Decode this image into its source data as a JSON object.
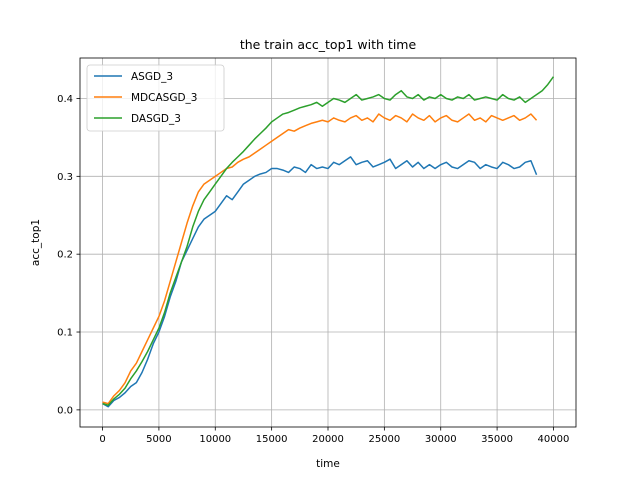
{
  "chart_data": {
    "type": "line",
    "title": "the train acc_top1 with time",
    "xlabel": "time",
    "ylabel": "acc_top1",
    "xlim": [
      -2000,
      42000
    ],
    "ylim": [
      -0.022,
      0.452
    ],
    "xticks": [
      0,
      5000,
      10000,
      15000,
      20000,
      25000,
      30000,
      35000,
      40000
    ],
    "xtick_labels": [
      "0",
      "5000",
      "10000",
      "15000",
      "20000",
      "25000",
      "30000",
      "35000",
      "40000"
    ],
    "yticks": [
      0.0,
      0.1,
      0.2,
      0.3,
      0.4
    ],
    "ytick_labels": [
      "0.0",
      "0.1",
      "0.2",
      "0.3",
      "0.4"
    ],
    "grid": true,
    "legend_position": "upper-left",
    "series": [
      {
        "name": "ASGD_3",
        "color": "#1f77b4",
        "x": [
          0,
          500,
          1000,
          1500,
          2000,
          2500,
          3000,
          3500,
          4000,
          4500,
          5000,
          5500,
          6000,
          6500,
          7000,
          7500,
          8000,
          8500,
          9000,
          9500,
          10000,
          10500,
          11000,
          11500,
          12000,
          12500,
          13000,
          13500,
          14000,
          14500,
          15000,
          15500,
          16000,
          16500,
          17000,
          17500,
          18000,
          18500,
          19000,
          19500,
          20000,
          20500,
          21000,
          21500,
          22000,
          22500,
          23000,
          23500,
          24000,
          24500,
          25000,
          25500,
          26000,
          26500,
          27000,
          27500,
          28000,
          28500,
          29000,
          29500,
          30000,
          30500,
          31000,
          31500,
          32000,
          32500,
          33000,
          33500,
          34000,
          34500,
          35000,
          35500,
          36000,
          36500,
          37000,
          37500,
          38000,
          38500
        ],
        "y": [
          0.008,
          0.004,
          0.012,
          0.016,
          0.022,
          0.03,
          0.035,
          0.048,
          0.065,
          0.085,
          0.1,
          0.12,
          0.145,
          0.165,
          0.19,
          0.205,
          0.22,
          0.235,
          0.245,
          0.25,
          0.255,
          0.265,
          0.275,
          0.27,
          0.28,
          0.29,
          0.295,
          0.3,
          0.303,
          0.305,
          0.31,
          0.31,
          0.308,
          0.305,
          0.312,
          0.31,
          0.305,
          0.315,
          0.31,
          0.312,
          0.31,
          0.318,
          0.315,
          0.32,
          0.325,
          0.315,
          0.318,
          0.32,
          0.312,
          0.315,
          0.318,
          0.322,
          0.31,
          0.315,
          0.32,
          0.312,
          0.318,
          0.31,
          0.315,
          0.31,
          0.315,
          0.318,
          0.312,
          0.31,
          0.315,
          0.32,
          0.318,
          0.31,
          0.315,
          0.312,
          0.31,
          0.318,
          0.315,
          0.31,
          0.312,
          0.318,
          0.32,
          0.302
        ]
      },
      {
        "name": "MDCASGD_3",
        "color": "#ff7f0e",
        "x": [
          0,
          500,
          1000,
          1500,
          2000,
          2500,
          3000,
          3500,
          4000,
          4500,
          5000,
          5500,
          6000,
          6500,
          7000,
          7500,
          8000,
          8500,
          9000,
          9500,
          10000,
          10500,
          11000,
          11500,
          12000,
          12500,
          13000,
          13500,
          14000,
          14500,
          15000,
          15500,
          16000,
          16500,
          17000,
          17500,
          18000,
          18500,
          19000,
          19500,
          20000,
          20500,
          21000,
          21500,
          22000,
          22500,
          23000,
          23500,
          24000,
          24500,
          25000,
          25500,
          26000,
          26500,
          27000,
          27500,
          28000,
          28500,
          29000,
          29500,
          30000,
          30500,
          31000,
          31500,
          32000,
          32500,
          33000,
          33500,
          34000,
          34500,
          35000,
          35500,
          36000,
          36500,
          37000,
          37500,
          38000,
          38500
        ],
        "y": [
          0.01,
          0.008,
          0.018,
          0.025,
          0.035,
          0.05,
          0.06,
          0.075,
          0.09,
          0.105,
          0.12,
          0.14,
          0.165,
          0.19,
          0.215,
          0.24,
          0.262,
          0.28,
          0.29,
          0.295,
          0.3,
          0.305,
          0.31,
          0.312,
          0.318,
          0.322,
          0.325,
          0.33,
          0.335,
          0.34,
          0.345,
          0.35,
          0.355,
          0.36,
          0.358,
          0.362,
          0.365,
          0.368,
          0.37,
          0.372,
          0.37,
          0.375,
          0.372,
          0.37,
          0.375,
          0.378,
          0.372,
          0.375,
          0.37,
          0.38,
          0.375,
          0.372,
          0.378,
          0.375,
          0.37,
          0.38,
          0.375,
          0.372,
          0.378,
          0.37,
          0.375,
          0.378,
          0.372,
          0.37,
          0.375,
          0.38,
          0.372,
          0.375,
          0.37,
          0.378,
          0.375,
          0.372,
          0.375,
          0.378,
          0.372,
          0.375,
          0.38,
          0.372
        ]
      },
      {
        "name": "DASGD_3",
        "color": "#2ca02c",
        "x": [
          0,
          500,
          1000,
          1500,
          2000,
          2500,
          3000,
          3500,
          4000,
          4500,
          5000,
          5500,
          6000,
          6500,
          7000,
          7500,
          8000,
          8500,
          9000,
          9500,
          10000,
          10500,
          11000,
          11500,
          12000,
          12500,
          13000,
          13500,
          14000,
          14500,
          15000,
          15500,
          16000,
          16500,
          17000,
          17500,
          18000,
          18500,
          19000,
          19500,
          20000,
          20500,
          21000,
          21500,
          22000,
          22500,
          23000,
          23500,
          24000,
          24500,
          25000,
          25500,
          26000,
          26500,
          27000,
          27500,
          28000,
          28500,
          29000,
          29500,
          30000,
          30500,
          31000,
          31500,
          32000,
          32500,
          33000,
          33500,
          34000,
          34500,
          35000,
          35500,
          36000,
          36500,
          37000,
          37500,
          38000,
          38500,
          39000,
          39500,
          40000
        ],
        "y": [
          0.008,
          0.006,
          0.014,
          0.02,
          0.028,
          0.04,
          0.05,
          0.062,
          0.075,
          0.09,
          0.105,
          0.125,
          0.15,
          0.17,
          0.19,
          0.21,
          0.235,
          0.255,
          0.27,
          0.28,
          0.29,
          0.3,
          0.31,
          0.318,
          0.325,
          0.332,
          0.34,
          0.348,
          0.355,
          0.362,
          0.37,
          0.375,
          0.38,
          0.382,
          0.385,
          0.388,
          0.39,
          0.392,
          0.395,
          0.39,
          0.395,
          0.4,
          0.398,
          0.395,
          0.4,
          0.405,
          0.398,
          0.4,
          0.402,
          0.405,
          0.4,
          0.398,
          0.405,
          0.41,
          0.402,
          0.4,
          0.405,
          0.398,
          0.402,
          0.4,
          0.405,
          0.4,
          0.398,
          0.402,
          0.4,
          0.405,
          0.398,
          0.4,
          0.402,
          0.4,
          0.398,
          0.405,
          0.4,
          0.398,
          0.402,
          0.395,
          0.4,
          0.405,
          0.41,
          0.418,
          0.428
        ]
      }
    ]
  }
}
